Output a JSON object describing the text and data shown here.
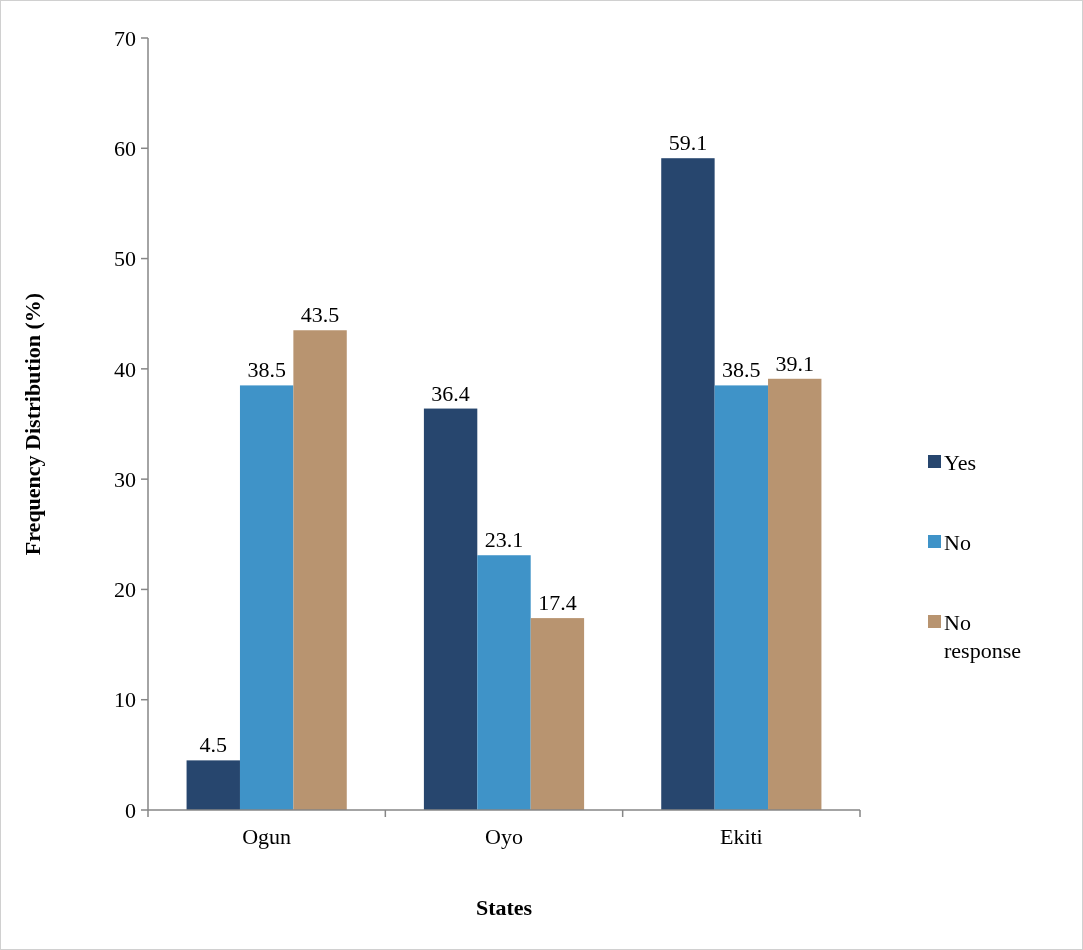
{
  "chart_data": {
    "type": "bar",
    "xlabel": "States",
    "ylabel": "Frequency Distribution (%)",
    "categories": [
      "Ogun",
      "Oyo",
      "Ekiti"
    ],
    "series": [
      {
        "name": "Yes",
        "color": "#27466e",
        "values": [
          4.5,
          36.4,
          59.1
        ]
      },
      {
        "name": "No",
        "color": "#3f93c8",
        "values": [
          38.5,
          23.1,
          38.5
        ]
      },
      {
        "name": "No response",
        "color": "#b89470",
        "values": [
          43.5,
          17.4,
          39.1
        ]
      }
    ],
    "ylim": [
      0,
      70
    ],
    "yticks": [
      0,
      10,
      20,
      30,
      40,
      50,
      60,
      70
    ],
    "data_labels": true,
    "grid": false,
    "legend": "right"
  }
}
